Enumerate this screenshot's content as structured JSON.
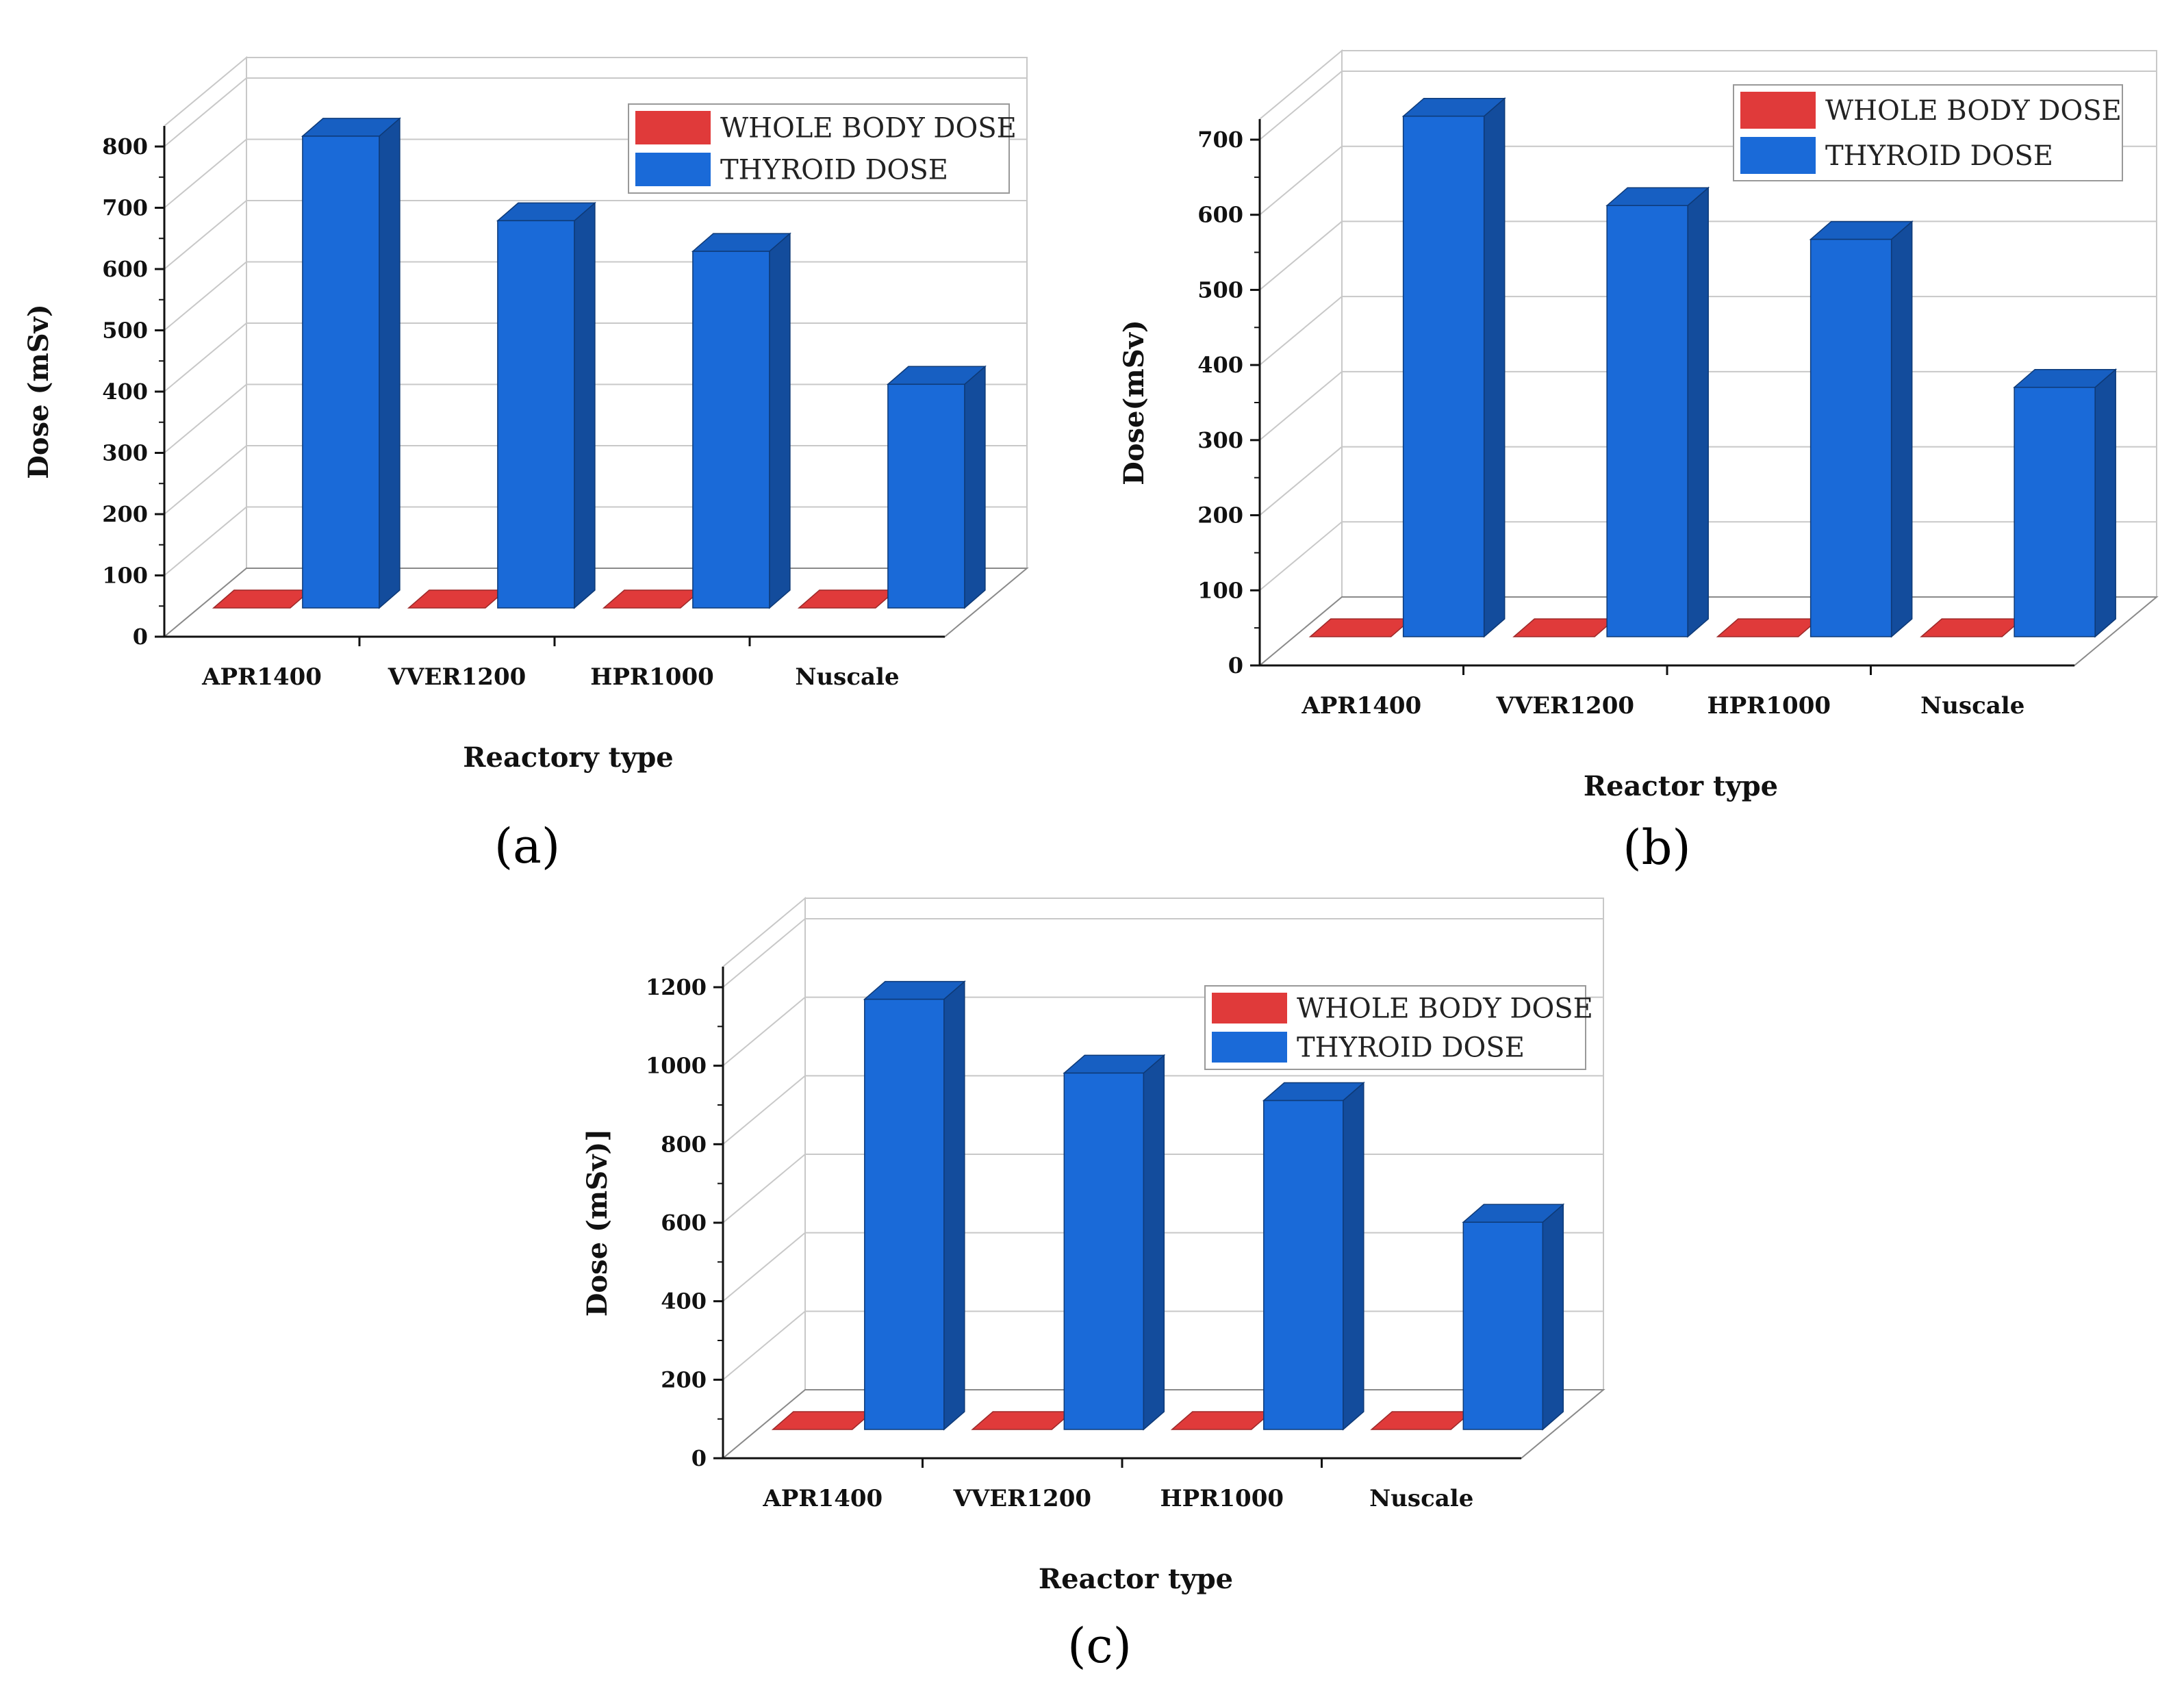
{
  "chart_data": [
    {
      "panel": "(a)",
      "type": "bar",
      "style": "3d-grouped",
      "categories": [
        "APR1400",
        "VVER1200",
        "HPR1000",
        "Nuscale"
      ],
      "series": [
        {
          "name": "WHOLE BODY DOSE",
          "color": "#e03a3a",
          "values": [
            3,
            3,
            3,
            3
          ]
        },
        {
          "name": "THYROID DOSE",
          "color": "#1a6ad8",
          "values": [
            770,
            632,
            582,
            365
          ]
        }
      ],
      "xlabel": "Reactory type",
      "ylabel": "Dose (mSv)",
      "ylim": [
        0,
        800
      ],
      "yticks": [
        0,
        100,
        200,
        300,
        400,
        500,
        600,
        700,
        800
      ],
      "grid": true,
      "legend": "top-right"
    },
    {
      "panel": "(b)",
      "type": "bar",
      "style": "3d-grouped",
      "categories": [
        "APR1400",
        "VVER1200",
        "HPR1000",
        "Nuscale"
      ],
      "series": [
        {
          "name": "WHOLE BODY DOSE",
          "color": "#e03a3a",
          "values": [
            3,
            3,
            3,
            3
          ]
        },
        {
          "name": "THYROID DOSE",
          "color": "#1a6ad8",
          "values": [
            693,
            574,
            529,
            332
          ]
        }
      ],
      "xlabel": "Reactor type",
      "ylabel": "Dose(mSv)",
      "ylim": [
        0,
        700
      ],
      "yticks": [
        0,
        100,
        200,
        300,
        400,
        500,
        600,
        700
      ],
      "grid": true,
      "legend": "top-right"
    },
    {
      "panel": "(c)",
      "type": "bar",
      "style": "3d-grouped",
      "categories": [
        "APR1400",
        "VVER1200",
        "HPR1000",
        "Nuscale"
      ],
      "series": [
        {
          "name": "WHOLE BODY DOSE",
          "color": "#e03a3a",
          "values": [
            5,
            5,
            5,
            5
          ]
        },
        {
          "name": "THYROID DOSE",
          "color": "#1a6ad8",
          "values": [
            1096,
            908,
            838,
            528
          ]
        }
      ],
      "xlabel": "Reactor type",
      "ylabel": "Dose (mSv)]",
      "ylim": [
        0,
        1200
      ],
      "yticks": [
        0,
        200,
        400,
        600,
        800,
        1000,
        1200
      ],
      "grid": true,
      "legend": "top-right"
    }
  ]
}
